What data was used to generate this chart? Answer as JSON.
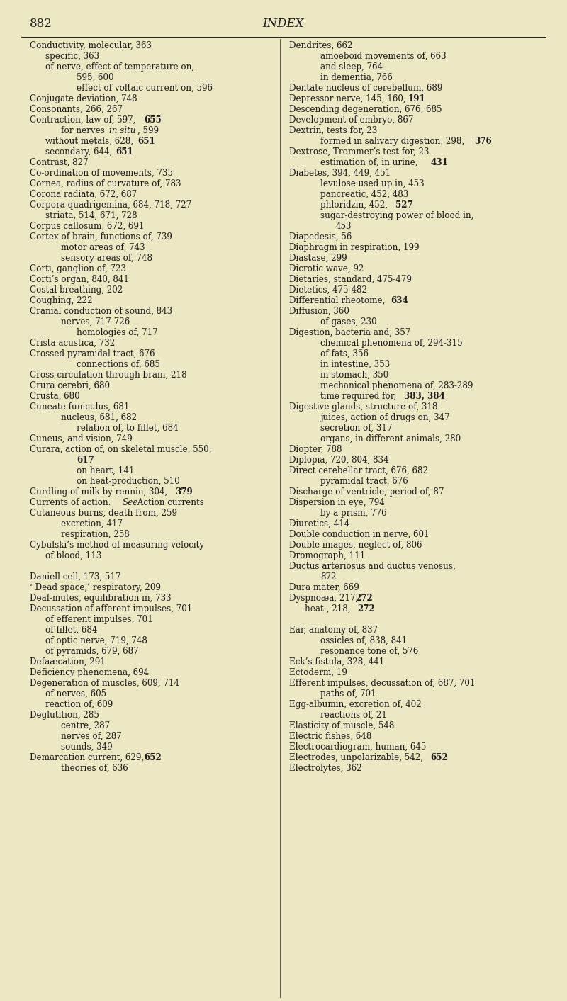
{
  "background_color": "#ede8c4",
  "text_color": "#1c1c1c",
  "fig_width": 8.0,
  "fig_height": 14.13,
  "dpi": 100,
  "col1": [
    {
      "t": "Conductivity, molecular, 363",
      "ind": 0
    },
    {
      "t": "specific, 363",
      "ind": 1
    },
    {
      "t": "of nerve, effect of temperature on,",
      "ind": 1
    },
    {
      "t": "595, 600",
      "ind": 3
    },
    {
      "t": "effect of voltaic current on, 596",
      "ind": 3
    },
    {
      "t": "Conjugate deviation, 748",
      "ind": 0
    },
    {
      "t": "Consonants, 266, 267",
      "ind": 0
    },
    {
      "t": "Contraction, law of, 597, ",
      "ind": 0,
      "b": "655"
    },
    {
      "t": "for nerves ",
      "ind": 2,
      "it": "in situ",
      "af": ", 599"
    },
    {
      "t": "without metals, 628, ",
      "ind": 1,
      "b": "651"
    },
    {
      "t": "secondary, 644, ",
      "ind": 1,
      "b": "651"
    },
    {
      "t": "Contrast, 827",
      "ind": 0
    },
    {
      "t": "Co-ordination of movements, 735",
      "ind": 0
    },
    {
      "t": "Cornea, radius of curvature of, 783",
      "ind": 0
    },
    {
      "t": "Corona radiata, 672, 687",
      "ind": 0
    },
    {
      "t": "Corpora quadrigemina, 684, 718, 727",
      "ind": 0
    },
    {
      "t": "striata, 514, 671, 728",
      "ind": 1
    },
    {
      "t": "Corpus callosum, 672, 691",
      "ind": 0
    },
    {
      "t": "Cortex of brain, functions of, 739",
      "ind": 0
    },
    {
      "t": "motor areas of, 743",
      "ind": 2
    },
    {
      "t": "sensory areas of, 748",
      "ind": 2
    },
    {
      "t": "Corti, ganglion of, 723",
      "ind": 0
    },
    {
      "t": "Corti’s organ, 840, 841",
      "ind": 0
    },
    {
      "t": "Costal breathing, 202",
      "ind": 0
    },
    {
      "t": "Coughing, 222",
      "ind": 0
    },
    {
      "t": "Cranial conduction of sound, 843",
      "ind": 0
    },
    {
      "t": "nerves, 717-726",
      "ind": 2
    },
    {
      "t": "homologies of, 717",
      "ind": 3
    },
    {
      "t": "Crista acustica, 732",
      "ind": 0
    },
    {
      "t": "Crossed pyramidal tract, 676",
      "ind": 0
    },
    {
      "t": "connections of, 685",
      "ind": 3
    },
    {
      "t": "Cross-circulation through brain, 218",
      "ind": 0
    },
    {
      "t": "Crura cerebri, 680",
      "ind": 0
    },
    {
      "t": "Crusta, 680",
      "ind": 0
    },
    {
      "t": "Cuneate funiculus, 681",
      "ind": 0
    },
    {
      "t": "nucleus, 681, 682",
      "ind": 2
    },
    {
      "t": "relation of, to fillet, 684",
      "ind": 3
    },
    {
      "t": "Cuneus, and vision, 749",
      "ind": 0
    },
    {
      "t": "Curara, action of, on skeletal muscle, 550,",
      "ind": 0
    },
    {
      "t": "617",
      "ind": 3,
      "bold_only": true
    },
    {
      "t": "on heart, 141",
      "ind": 3
    },
    {
      "t": "on heat-production, 510",
      "ind": 3
    },
    {
      "t": "Curdling of milk by rennin, 304, ",
      "ind": 0,
      "b": "379"
    },
    {
      "t": "Currents of action.  ",
      "ind": 0,
      "it": "See",
      "af": " Action currents"
    },
    {
      "t": "Cutaneous burns, death from, 259",
      "ind": 0
    },
    {
      "t": "excretion, 417",
      "ind": 2
    },
    {
      "t": "respiration, 258",
      "ind": 2
    },
    {
      "t": "Cybulski’s method of measuring velocity",
      "ind": 0
    },
    {
      "t": "of blood, 113",
      "ind": 1
    },
    {
      "t": "",
      "ind": 0
    },
    {
      "t": "Daniell cell, 173, 517",
      "ind": 0
    },
    {
      "t": "‘ Dead space,’ respiratory, 209",
      "ind": 0
    },
    {
      "t": "Deaf-mutes, equilibration in, 733",
      "ind": 0
    },
    {
      "t": "Decussation of afferent impulses, 701",
      "ind": 0
    },
    {
      "t": "of efferent impulses, 701",
      "ind": 1
    },
    {
      "t": "of fillet, 684",
      "ind": 1
    },
    {
      "t": "of optic nerve, 719, 748",
      "ind": 1
    },
    {
      "t": "of pyramids, 679, 687",
      "ind": 1
    },
    {
      "t": "Defaæcation, 291",
      "ind": 0
    },
    {
      "t": "Deficiency phenomena, 694",
      "ind": 0
    },
    {
      "t": "Degeneration of muscles, 609, 714",
      "ind": 0
    },
    {
      "t": "of nerves, 605",
      "ind": 1
    },
    {
      "t": "reaction of, 609",
      "ind": 1
    },
    {
      "t": "Deglutition, 285",
      "ind": 0
    },
    {
      "t": "centre, 287",
      "ind": 2
    },
    {
      "t": "nerves of, 287",
      "ind": 2
    },
    {
      "t": "sounds, 349",
      "ind": 2
    },
    {
      "t": "Demarcation current, 629, ",
      "ind": 0,
      "b": "652"
    },
    {
      "t": "theories of, 636",
      "ind": 2
    }
  ],
  "col2": [
    {
      "t": "Dendrites, 662",
      "ind": 0
    },
    {
      "t": "amoeboid movements of, 663",
      "ind": 2
    },
    {
      "t": "and sleep, 764",
      "ind": 2
    },
    {
      "t": "in dementia, 766",
      "ind": 2
    },
    {
      "t": "Dentate nucleus of cerebellum, 689",
      "ind": 0
    },
    {
      "t": "Depressor nerve, 145, 160, ",
      "ind": 0,
      "b": "191"
    },
    {
      "t": "Descending degeneration, 676, 685",
      "ind": 0
    },
    {
      "t": "Development of embryo, 867",
      "ind": 0
    },
    {
      "t": "Dextrin, tests for, 23",
      "ind": 0
    },
    {
      "t": "formed in salivary digestion, 298, ",
      "ind": 2,
      "b": "376"
    },
    {
      "t": "Dextrose, Trommer’s test for, 23",
      "ind": 0
    },
    {
      "t": "estimation of, in urine, ",
      "ind": 2,
      "b": "431"
    },
    {
      "t": "Diabetes, 394, 449, 451",
      "ind": 0
    },
    {
      "t": "levulose used up in, 453",
      "ind": 2
    },
    {
      "t": "pancreatic, 452, 483",
      "ind": 2
    },
    {
      "t": "phloridzin, 452, ",
      "ind": 2,
      "b": "527"
    },
    {
      "t": "sugar-destroying power of blood in,",
      "ind": 2
    },
    {
      "t": "453",
      "ind": 3
    },
    {
      "t": "Diapedesis, 56",
      "ind": 0
    },
    {
      "t": "Diaphragm in respiration, 199",
      "ind": 0
    },
    {
      "t": "Diastase, 299",
      "ind": 0
    },
    {
      "t": "Dicrotic wave, 92",
      "ind": 0
    },
    {
      "t": "Dietaries, standard, 475-479",
      "ind": 0
    },
    {
      "t": "Dietetics, 475-482",
      "ind": 0
    },
    {
      "t": "Differential rheotome, ",
      "ind": 0,
      "b": "634"
    },
    {
      "t": "Diffusion, 360",
      "ind": 0
    },
    {
      "t": "of gases, 230",
      "ind": 2
    },
    {
      "t": "Digestion, bacteria and, 357",
      "ind": 0
    },
    {
      "t": "chemical phenomena of, 294-315",
      "ind": 2
    },
    {
      "t": "of fats, 356",
      "ind": 2
    },
    {
      "t": "in intestine, 353",
      "ind": 2
    },
    {
      "t": "in stomach, 350",
      "ind": 2
    },
    {
      "t": "mechanical phenomena of, 283-289",
      "ind": 2
    },
    {
      "t": "time required for, ",
      "ind": 2,
      "b": "383, 384"
    },
    {
      "t": "Digestive glands, structure of, 318",
      "ind": 0
    },
    {
      "t": "juices, action of drugs on, 347",
      "ind": 2
    },
    {
      "t": "secretion of, 317",
      "ind": 2
    },
    {
      "t": "organs, in different animals, 280",
      "ind": 2
    },
    {
      "t": "Diopter, 788",
      "ind": 0
    },
    {
      "t": "Diplopia, 720, 804, 834",
      "ind": 0
    },
    {
      "t": "Direct cerebellar tract, 676, 682",
      "ind": 0
    },
    {
      "t": "pyramidal tract, 676",
      "ind": 2
    },
    {
      "t": "Discharge of ventricle, period of, 87",
      "ind": 0
    },
    {
      "t": "Dispersion in eye, 794",
      "ind": 0
    },
    {
      "t": "by a prism, 776",
      "ind": 2
    },
    {
      "t": "Diuretics, 414",
      "ind": 0
    },
    {
      "t": "Double conduction in nerve, 601",
      "ind": 0
    },
    {
      "t": "Double images, neglect of, 806",
      "ind": 0
    },
    {
      "t": "Dromograph, 111",
      "ind": 0
    },
    {
      "t": "Ductus arteriosus and ductus venosus,",
      "ind": 0
    },
    {
      "t": "872",
      "ind": 2
    },
    {
      "t": "Dura mater, 669",
      "ind": 0
    },
    {
      "t": "Dyspnoæa, 217, ",
      "ind": 0,
      "b": "272"
    },
    {
      "t": "heat-, 218, ",
      "ind": 1,
      "b": "272"
    },
    {
      "t": "",
      "ind": 0
    },
    {
      "t": "Ear, anatomy of, 837",
      "ind": 0
    },
    {
      "t": "ossicles of, 838, 841",
      "ind": 2
    },
    {
      "t": "resonance tone of, 576",
      "ind": 2
    },
    {
      "t": "Eck’s fistula, 328, 441",
      "ind": 0
    },
    {
      "t": "Ectoderm, 19",
      "ind": 0
    },
    {
      "t": "Efferent impulses, decussation of, 687, 701",
      "ind": 0
    },
    {
      "t": "paths of, 701",
      "ind": 2
    },
    {
      "t": "Egg-albumin, excretion of, 402",
      "ind": 0
    },
    {
      "t": "reactions of, 21",
      "ind": 2
    },
    {
      "t": "Elasticity of muscle, 548",
      "ind": 0
    },
    {
      "t": "Electric fishes, 648",
      "ind": 0
    },
    {
      "t": "Electrocardiogram, human, 645",
      "ind": 0
    },
    {
      "t": "Electrodes, unpolarizable, 542, ",
      "ind": 0,
      "b": "652"
    },
    {
      "t": "Electrolytes, 362",
      "ind": 0
    }
  ]
}
